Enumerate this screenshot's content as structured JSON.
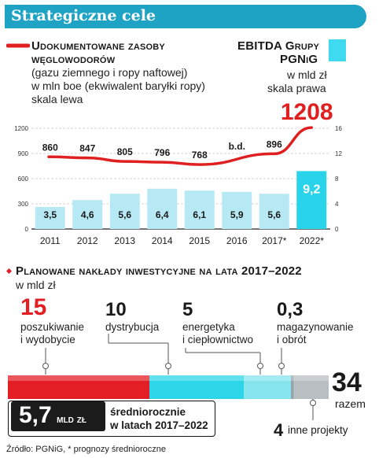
{
  "header": {
    "title": "Strategiczne cele"
  },
  "legend": {
    "line_title_1": "Udokumentowane zasoby",
    "line_title_2": "węglowodorów",
    "line_sub_1": "(gazu ziemnego i ropy naftowej)",
    "line_sub_2": "w mln boe (ekwiwalent baryłki ropy)",
    "line_sub_3": "skala lewa",
    "bar_title_1": "EBITDA Grupy",
    "bar_title_2": "PGNiG",
    "bar_sub_1": "w mld zł",
    "bar_sub_2": "skala prawa"
  },
  "chart_data": [
    {
      "type": "bar+line",
      "categories": [
        "2011",
        "2012",
        "2013",
        "2014",
        "2015",
        "2016",
        "2017*",
        "2022*"
      ],
      "series": [
        {
          "name": "Udokumentowane zasoby węglowodorów",
          "type": "line",
          "axis": "left",
          "values": [
            860,
            847,
            805,
            796,
            768,
            null,
            896,
            1208
          ],
          "value_labels": [
            "860",
            "847",
            "805",
            "796",
            "768",
            "b.d.",
            "896",
            "1208"
          ]
        },
        {
          "name": "EBITDA Grupy PGNiG",
          "type": "bar",
          "axis": "right",
          "values": [
            3.5,
            4.6,
            5.6,
            6.4,
            6.1,
            5.9,
            5.6,
            9.2
          ],
          "value_labels": [
            "3,5",
            "4,6",
            "5,6",
            "6,4",
            "6,1",
            "5,9",
            "5,6",
            "9,2"
          ]
        }
      ],
      "y_left": {
        "ticks": [
          "0",
          "300",
          "600",
          "900",
          "1200"
        ],
        "range": [
          0,
          1200
        ]
      },
      "y_right": {
        "ticks": [
          "0",
          "4",
          "8",
          "12",
          "16"
        ],
        "range": [
          0,
          16
        ]
      },
      "colors": {
        "line": "#e02020",
        "bar": "#b6e9f4",
        "bar_highlight": "#29d3ea"
      }
    },
    {
      "type": "bar",
      "title": "Planowane nakłady inwestycyjne na lata 2017–2022",
      "unit": "w mld zł",
      "categories": [
        "poszukiwanie i wydobycie",
        "dystrybucja",
        "energetyka i ciepłownictwo",
        "magazynowanie i obrót",
        "inne projekty"
      ],
      "values": [
        15,
        10,
        5,
        0.3,
        4
      ],
      "value_labels": [
        "15",
        "10",
        "5",
        "0,3",
        "4"
      ],
      "total": {
        "value": 34,
        "value_label": "34",
        "label": "razem"
      },
      "average": {
        "value": 5.7,
        "value_label": "5,7",
        "unit": "mld zł",
        "label_1": "średniorocznie",
        "label_2": "w latach 2017–2022"
      },
      "colors": [
        "#e31e24",
        "#2cd6e8",
        "#86e4ef",
        "#9aa3a8",
        "#b8bec2"
      ]
    }
  ],
  "section2": {
    "title": "Planowane nakłady inwestycyjne na lata 2017–2022",
    "unit": "w mld zł",
    "cat1_value": "15",
    "cat1_label_1": "poszukiwanie",
    "cat1_label_2": "i wydobycie",
    "cat2_value": "10",
    "cat2_label_1": "dystrybucja",
    "cat3_value": "5",
    "cat3_label_1": "energetyka",
    "cat3_label_2": "i ciepłownictwo",
    "cat4_value": "0,3",
    "cat4_label_1": "magazynowanie",
    "cat4_label_2": "i obrót",
    "other_value": "4",
    "other_label": "inne projekty",
    "total_value": "34",
    "total_label": "razem",
    "avg_value": "5,7",
    "avg_unit": "mld zł",
    "avg_label_1": "średniorocznie",
    "avg_label_2": "w latach 2017–2022"
  },
  "source": "Źródło: PGNiG, * prognozy średnioroczne"
}
